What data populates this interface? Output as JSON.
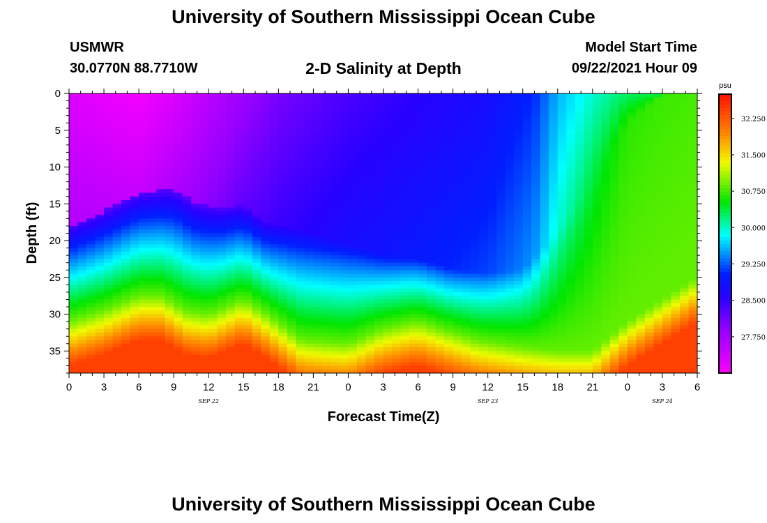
{
  "header": {
    "title_top": "University of Southern Mississippi Ocean Cube",
    "station": "USMWR",
    "coords": "30.0770N  88.7710W",
    "plot_title": "2-D Salinity at Depth",
    "model_label": "Model Start Time",
    "model_time": "09/22/2021 Hour 09"
  },
  "footer": {
    "title_bottom": "University of Southern Mississippi Ocean Cube"
  },
  "chart_data": {
    "type": "heatmap",
    "title": "2-D Salinity at Depth",
    "xlabel": "Forecast Time(Z)",
    "ylabel": "Depth (ft)",
    "x_range_hours": [
      0,
      54
    ],
    "y_range_ft": [
      0,
      38
    ],
    "xticks": [
      {
        "hour": 0,
        "label": "0"
      },
      {
        "hour": 3,
        "label": "3"
      },
      {
        "hour": 6,
        "label": "6"
      },
      {
        "hour": 9,
        "label": "9"
      },
      {
        "hour": 12,
        "label": "12"
      },
      {
        "hour": 15,
        "label": "15"
      },
      {
        "hour": 18,
        "label": "18"
      },
      {
        "hour": 21,
        "label": "21"
      },
      {
        "hour": 24,
        "label": "0"
      },
      {
        "hour": 27,
        "label": "3"
      },
      {
        "hour": 30,
        "label": "6"
      },
      {
        "hour": 33,
        "label": "9"
      },
      {
        "hour": 36,
        "label": "12"
      },
      {
        "hour": 39,
        "label": "15"
      },
      {
        "hour": 42,
        "label": "18"
      },
      {
        "hour": 45,
        "label": "21"
      },
      {
        "hour": 48,
        "label": "0"
      },
      {
        "hour": 51,
        "label": "3"
      },
      {
        "hour": 54,
        "label": "6"
      }
    ],
    "yticks": [
      0,
      5,
      10,
      15,
      20,
      25,
      30,
      35
    ],
    "date_labels": [
      {
        "hour": 12,
        "label": "SEP 22"
      },
      {
        "hour": 36,
        "label": "SEP 23"
      },
      {
        "hour": 51,
        "label": "SEP 24"
      }
    ],
    "colorbar": {
      "unit": "psu",
      "min": 27.0,
      "max": 32.75,
      "ticks": [
        "32.250",
        "31.500",
        "30.750",
        "30.000",
        "29.250",
        "28.500",
        "27.750"
      ]
    },
    "surface_salinity_psu": [
      [
        0,
        27.3
      ],
      [
        6,
        27.1
      ],
      [
        9,
        27.3
      ],
      [
        12,
        27.6
      ],
      [
        18,
        28.1
      ],
      [
        24,
        28.4
      ],
      [
        30,
        28.6
      ],
      [
        36,
        28.8
      ],
      [
        40,
        29.1
      ],
      [
        42,
        29.6
      ],
      [
        45,
        30.0
      ],
      [
        48,
        30.3
      ],
      [
        54,
        30.4
      ]
    ],
    "halocline_depth_ft": [
      [
        0,
        18
      ],
      [
        3,
        16
      ],
      [
        6,
        13.5
      ],
      [
        9,
        13
      ],
      [
        11,
        15
      ],
      [
        13,
        15.5
      ],
      [
        15,
        15
      ],
      [
        17,
        17.5
      ],
      [
        20,
        18.5
      ],
      [
        24,
        20.5
      ],
      [
        27,
        22
      ],
      [
        30,
        22.5
      ],
      [
        33,
        24
      ],
      [
        36,
        24.5
      ],
      [
        39,
        24
      ],
      [
        42,
        19
      ],
      [
        45,
        12
      ],
      [
        48,
        4
      ],
      [
        51,
        0
      ],
      [
        54,
        0
      ]
    ],
    "high_salinity_top_ft": [
      [
        0,
        31
      ],
      [
        3,
        29.5
      ],
      [
        6,
        27.5
      ],
      [
        8,
        27.5
      ],
      [
        10,
        29.5
      ],
      [
        12,
        30
      ],
      [
        15,
        28
      ],
      [
        17,
        30
      ],
      [
        20,
        33.5
      ],
      [
        24,
        34
      ],
      [
        27,
        32
      ],
      [
        30,
        31
      ],
      [
        32,
        32
      ],
      [
        35,
        33.5
      ],
      [
        39,
        34.5
      ],
      [
        42,
        35
      ],
      [
        45,
        35
      ],
      [
        48,
        31
      ],
      [
        51,
        28
      ],
      [
        54,
        25
      ]
    ]
  }
}
